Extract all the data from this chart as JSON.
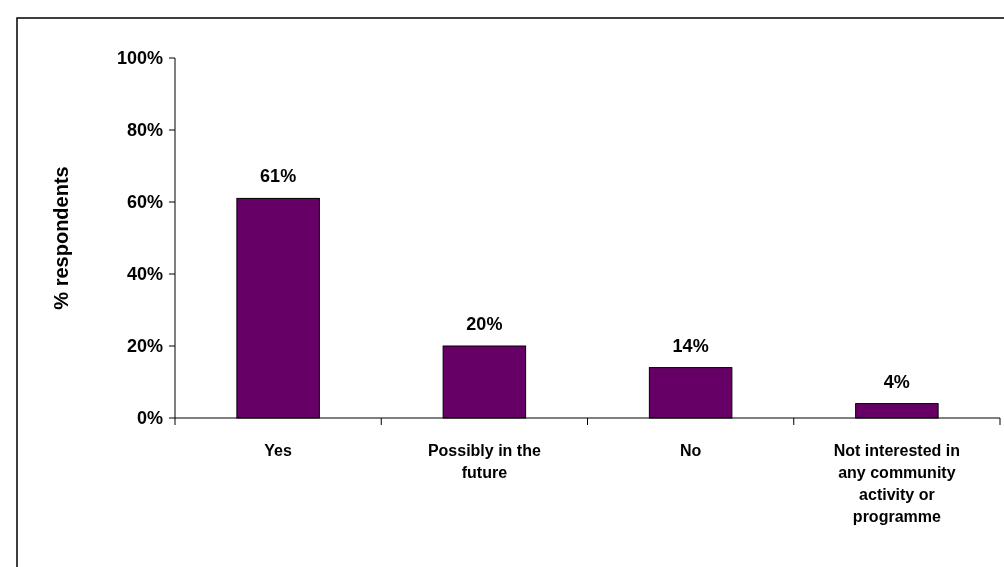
{
  "chart_data": {
    "type": "bar",
    "ylabel": "% respondents",
    "categories": [
      "Yes",
      "Possibly in the future",
      "No",
      "Not interested in any community activity or programme"
    ],
    "values": [
      61,
      20,
      14,
      4
    ],
    "color": "#660066",
    "value_labels": [
      "61%",
      "20%",
      "14%",
      "4%"
    ],
    "ylim": [
      0,
      100
    ],
    "yticks": [
      {
        "value": 0,
        "label": "0%"
      },
      {
        "value": 20,
        "label": "20%"
      },
      {
        "value": 40,
        "label": "40%"
      },
      {
        "value": 60,
        "label": "60%"
      },
      {
        "value": 80,
        "label": "80%"
      },
      {
        "value": 100,
        "label": "100%"
      }
    ],
    "grid": false
  }
}
